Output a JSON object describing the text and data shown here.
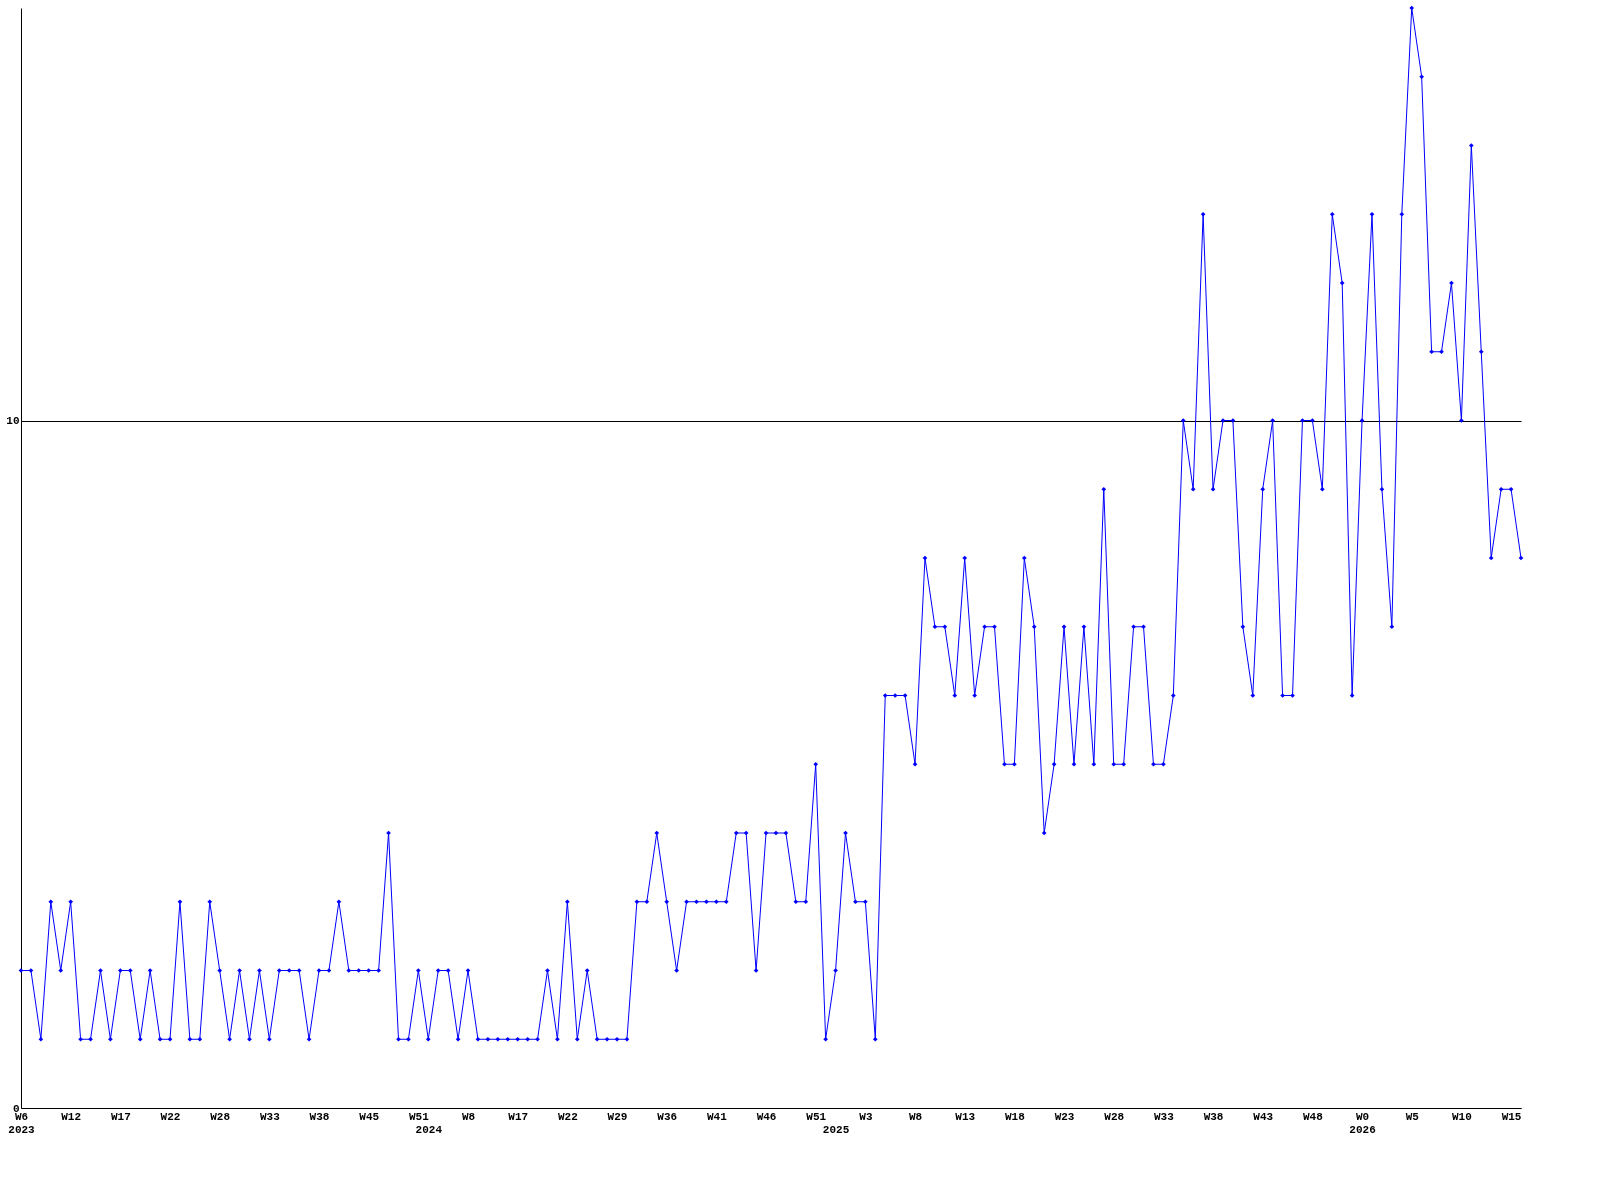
{
  "chart_data": {
    "type": "line",
    "categories": [
      "W6\n2023",
      null,
      null,
      null,
      null,
      "W12",
      null,
      null,
      null,
      null,
      "W17",
      null,
      null,
      null,
      null,
      "W22",
      null,
      null,
      null,
      null,
      "W28",
      null,
      null,
      null,
      null,
      "W33",
      null,
      null,
      null,
      null,
      "W38",
      null,
      null,
      null,
      null,
      "W45",
      null,
      null,
      null,
      null,
      "W51",
      "\n2024",
      null,
      null,
      null,
      "W8",
      null,
      null,
      null,
      null,
      "W17",
      null,
      null,
      null,
      null,
      "W22",
      null,
      null,
      null,
      null,
      "W29",
      null,
      null,
      null,
      null,
      "W36",
      null,
      null,
      null,
      null,
      "W41",
      null,
      null,
      null,
      null,
      "W46",
      null,
      null,
      null,
      null,
      "W51",
      null,
      "\n2025",
      null,
      null,
      "W3",
      null,
      null,
      null,
      null,
      "W8",
      null,
      null,
      null,
      null,
      "W13",
      null,
      null,
      null,
      null,
      "W18",
      null,
      null,
      null,
      null,
      "W23",
      null,
      null,
      null,
      null,
      "W28",
      null,
      null,
      null,
      null,
      "W33",
      null,
      null,
      null,
      null,
      "W38",
      null,
      null,
      null,
      null,
      "W43",
      null,
      null,
      null,
      null,
      "W48",
      null,
      null,
      null,
      null,
      "W0\n2026",
      null,
      null,
      null,
      null,
      "W5",
      null,
      null,
      null,
      null,
      "W10",
      null,
      null,
      null,
      null,
      "W15",
      null
    ],
    "series": [
      {
        "color": "#0000ff",
        "values": [
          2,
          2,
          1,
          3,
          2,
          3,
          1,
          1,
          2,
          1,
          2,
          2,
          1,
          2,
          1,
          1,
          3,
          1,
          1,
          3,
          2,
          1,
          2,
          1,
          2,
          1,
          2,
          2,
          2,
          1,
          2,
          2,
          3,
          2,
          2,
          2,
          2,
          4,
          1,
          1,
          2,
          1,
          2,
          2,
          1,
          2,
          1,
          1,
          1,
          1,
          1,
          1,
          1,
          2,
          1,
          3,
          1,
          2,
          1,
          1,
          1,
          1,
          3,
          3,
          4,
          3,
          2,
          3,
          3,
          3,
          3,
          3,
          4,
          4,
          2,
          4,
          4,
          4,
          3,
          3,
          5,
          1,
          2,
          4,
          3,
          3,
          1,
          6,
          6,
          6,
          5,
          8,
          7,
          7,
          6,
          8,
          6,
          7,
          7,
          5,
          5,
          8,
          7,
          4,
          5,
          7,
          5,
          7,
          5,
          9,
          5,
          5,
          7,
          7,
          5,
          5,
          6,
          10,
          9,
          13,
          9,
          10,
          10,
          7,
          6,
          9,
          10,
          6,
          6,
          10,
          10,
          9,
          13,
          12,
          6,
          10,
          13,
          9,
          7,
          13,
          16,
          15,
          11,
          11,
          12,
          10,
          14,
          11,
          8,
          9,
          9,
          8
        ]
      }
    ],
    "ylim": [
      0,
      16
    ],
    "yticks": [
      0,
      10
    ],
    "grid": "y",
    "marker": "diamond",
    "line_style": "solid"
  }
}
